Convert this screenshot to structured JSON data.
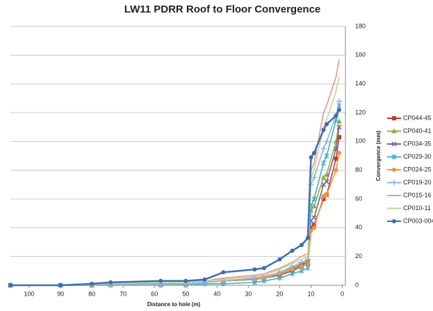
{
  "chart_data": {
    "type": "line",
    "title": "LW11 PDRR Roof to Floor Convergence",
    "x_label": "Distance to hole (m)",
    "y_label": "Convergence (mm)",
    "x": [
      106,
      90,
      80,
      74,
      58,
      50,
      44,
      38,
      28,
      25,
      20,
      16,
      13,
      11,
      10,
      9,
      6,
      5,
      2,
      1
    ],
    "xlim": [
      106,
      -1
    ],
    "xticks": [
      100,
      90,
      80,
      70,
      60,
      50,
      40,
      30,
      20,
      10,
      0
    ],
    "ylim": [
      0,
      180
    ],
    "yticks": [
      0,
      20,
      40,
      60,
      80,
      100,
      120,
      140,
      160,
      180
    ],
    "grid": true,
    "legend": "right",
    "series": [
      {
        "name": "CP044-45",
        "color": "#c0392b",
        "marker": "square",
        "values": [
          0,
          0,
          0,
          1,
          1,
          1,
          2,
          3,
          4,
          5,
          7,
          10,
          13,
          15,
          40,
          42,
          60,
          63,
          88,
          103
        ]
      },
      {
        "name": "CP040-41",
        "color": "#8db33a",
        "marker": "triangle",
        "values": [
          0,
          0,
          0,
          1,
          1,
          1,
          2,
          3,
          5,
          6,
          9,
          12,
          15,
          17,
          52,
          55,
          75,
          77,
          100,
          114
        ]
      },
      {
        "name": "CP034-35",
        "color": "#7d5a9e",
        "marker": "x",
        "values": [
          0,
          0,
          0,
          1,
          1,
          1,
          2,
          3,
          4,
          5,
          8,
          11,
          14,
          16,
          45,
          47,
          70,
          72,
          95,
          110
        ]
      },
      {
        "name": "CP029-30",
        "color": "#3fb0c9",
        "marker": "star",
        "values": [
          0,
          0,
          0,
          0,
          0,
          0,
          1,
          1,
          2,
          3,
          5,
          8,
          10,
          12,
          55,
          60,
          85,
          90,
          115,
          125
        ]
      },
      {
        "name": "CP024-25",
        "color": "#f0913a",
        "marker": "circle",
        "values": [
          0,
          0,
          0,
          1,
          1,
          1,
          2,
          3,
          4,
          5,
          8,
          11,
          13,
          15,
          38,
          40,
          62,
          63,
          80,
          92
        ]
      },
      {
        "name": "CP019-20",
        "color": "#8fb3e0",
        "marker": "plus",
        "values": [
          0,
          0,
          0,
          1,
          1,
          1,
          2,
          3,
          5,
          6,
          9,
          13,
          16,
          18,
          70,
          75,
          95,
          100,
          118,
          128
        ]
      },
      {
        "name": "CP015-16",
        "color": "#e8948f",
        "marker": "none",
        "values": [
          0,
          0,
          1,
          1,
          2,
          2,
          3,
          5,
          7,
          8,
          12,
          16,
          20,
          22,
          80,
          85,
          120,
          125,
          145,
          157
        ]
      },
      {
        "name": "CP010-11",
        "color": "#bcd68e",
        "marker": "none",
        "values": [
          0,
          0,
          1,
          1,
          2,
          2,
          3,
          4,
          6,
          7,
          11,
          15,
          18,
          20,
          75,
          80,
          110,
          115,
          135,
          145
        ]
      },
      {
        "name": "CP003-004",
        "color": "#3b6db3",
        "marker": "circle",
        "values": [
          0,
          0,
          1,
          2,
          3,
          3,
          4,
          9,
          11,
          12,
          18,
          24,
          28,
          33,
          89,
          92,
          108,
          112,
          118,
          122
        ]
      }
    ]
  }
}
